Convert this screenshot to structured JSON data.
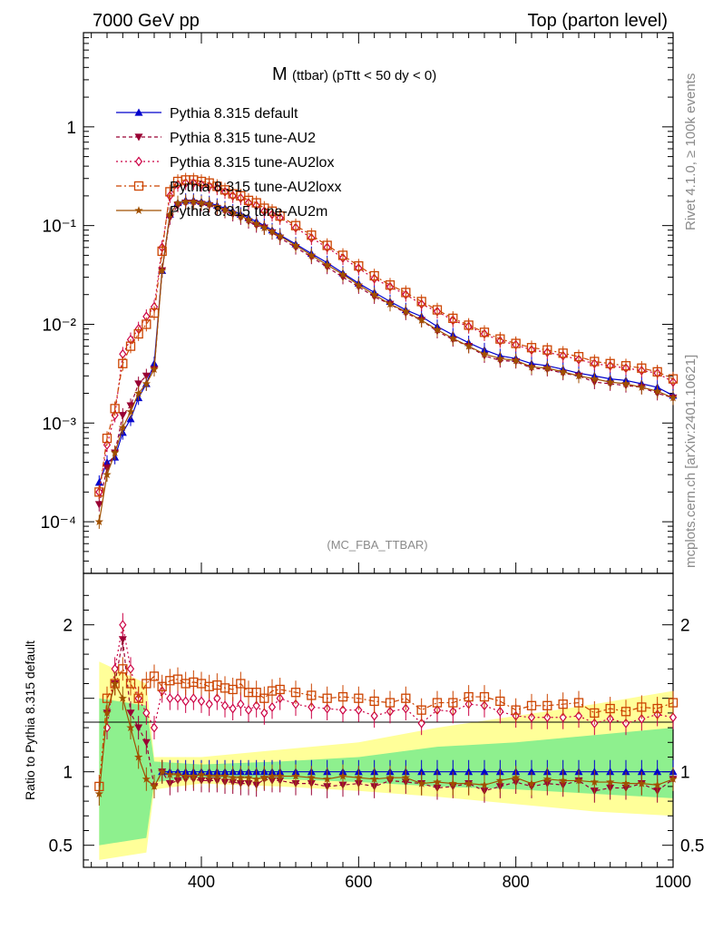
{
  "header": {
    "left": "7000 GeV pp",
    "right": "Top (parton level)"
  },
  "plot_title": {
    "main": "M",
    "sub": "(ttbar) (pTtt < 50 dy < 0)"
  },
  "side_labels": {
    "rivet": "Rivet 4.1.0, ≥ 100k events",
    "mcplots": "mcplots.cern.ch [arXiv:2401.10621]"
  },
  "analysis_tag": "(MC_FBA_TTBAR)",
  "ratio_ylabel": "Ratio to Pythia 8.315 default",
  "colors": {
    "default": "#0000cc",
    "AU2": "#990033",
    "AU2lox": "#cc0044",
    "AU2loxx": "#cc4400",
    "AU2m": "#a05000",
    "band_green": "#8ef08e",
    "band_yellow": "#ffff99"
  },
  "chart_data": {
    "type": "line",
    "title": "M (ttbar) (pTtt < 50 dy < 0)",
    "xlabel": "",
    "ylabel_ratio": "Ratio to Pythia 8.315 default",
    "xlim": [
      250,
      1000
    ],
    "ylim_main": [
      3e-05,
      9
    ],
    "yscale_main": "log",
    "ylim_ratio": [
      0.35,
      2.35
    ],
    "x_ticks": [
      "400",
      "600",
      "800",
      "1000"
    ],
    "y_ticks_main": [
      "10⁻⁴",
      "10⁻³",
      "10⁻²",
      "10⁻¹",
      "1"
    ],
    "y_ticks_ratio": [
      "0.5",
      "1",
      "2"
    ],
    "legend_position": "top-left",
    "x": [
      270,
      280,
      290,
      300,
      310,
      320,
      330,
      340,
      350,
      360,
      370,
      380,
      390,
      400,
      410,
      420,
      430,
      440,
      450,
      460,
      470,
      480,
      490,
      500,
      520,
      540,
      560,
      580,
      600,
      620,
      640,
      660,
      680,
      700,
      720,
      740,
      760,
      780,
      800,
      820,
      840,
      860,
      880,
      900,
      920,
      940,
      960,
      980,
      1000
    ],
    "series": [
      {
        "name": "Pythia 8.315 default",
        "key": "default",
        "marker": "triangle-up",
        "dash": "",
        "values": [
          0.00025,
          0.0004,
          0.00045,
          0.0008,
          0.0011,
          0.0018,
          0.0025,
          0.004,
          0.035,
          0.13,
          0.17,
          0.18,
          0.18,
          0.175,
          0.17,
          0.16,
          0.15,
          0.14,
          0.13,
          0.12,
          0.11,
          0.1,
          0.09,
          0.08,
          0.065,
          0.052,
          0.042,
          0.033,
          0.026,
          0.021,
          0.017,
          0.014,
          0.012,
          0.0095,
          0.0078,
          0.0065,
          0.0055,
          0.0048,
          0.0045,
          0.004,
          0.0038,
          0.0035,
          0.0032,
          0.003,
          0.0028,
          0.0027,
          0.0025,
          0.0023,
          0.0019
        ],
        "ratio": [
          null,
          null,
          null,
          null,
          null,
          null,
          null,
          null,
          1,
          1,
          1,
          1,
          1,
          1,
          1,
          1,
          1,
          1,
          1,
          1,
          1,
          1,
          1,
          1,
          1,
          1,
          1,
          1,
          1,
          1,
          1,
          1,
          1,
          1,
          1,
          1,
          1,
          1,
          1,
          1,
          1,
          1,
          1,
          1,
          1,
          1,
          1,
          1,
          1
        ]
      },
      {
        "name": "Pythia 8.315 tune-AU2",
        "key": "AU2",
        "marker": "triangle-down",
        "dash": "4,3",
        "values": [
          0.00015,
          0.00035,
          0.0005,
          0.0012,
          0.0015,
          0.0025,
          0.003,
          0.0035,
          0.035,
          0.12,
          0.16,
          0.17,
          0.17,
          0.165,
          0.16,
          0.15,
          0.14,
          0.13,
          0.12,
          0.11,
          0.1,
          0.095,
          0.085,
          0.075,
          0.06,
          0.048,
          0.038,
          0.03,
          0.024,
          0.019,
          0.016,
          0.013,
          0.011,
          0.0085,
          0.007,
          0.006,
          0.0048,
          0.0043,
          0.0042,
          0.0036,
          0.0035,
          0.0032,
          0.003,
          0.0026,
          0.0025,
          0.0024,
          0.0023,
          0.002,
          0.0018
        ],
        "ratio": [
          null,
          1.4,
          1.6,
          1.9,
          1.4,
          1.3,
          1.2,
          0.9,
          1.0,
          0.92,
          0.94,
          0.95,
          0.95,
          0.94,
          0.94,
          0.94,
          0.93,
          0.93,
          0.92,
          0.92,
          0.91,
          0.95,
          0.94,
          0.94,
          0.92,
          0.92,
          0.9,
          0.91,
          0.92,
          0.9,
          0.94,
          0.93,
          0.92,
          0.89,
          0.9,
          0.92,
          0.87,
          0.9,
          0.93,
          0.9,
          0.92,
          0.91,
          0.94,
          0.87,
          0.89,
          0.89,
          0.92,
          0.87,
          0.95
        ]
      },
      {
        "name": "Pythia 8.315 tune-AU2lox",
        "key": "AU2lox",
        "marker": "diamond",
        "dash": "2,3",
        "values": [
          0.0002,
          0.0006,
          0.0012,
          0.005,
          0.007,
          0.009,
          0.012,
          0.015,
          0.06,
          0.2,
          0.26,
          0.27,
          0.27,
          0.26,
          0.25,
          0.24,
          0.22,
          0.2,
          0.19,
          0.17,
          0.16,
          0.14,
          0.13,
          0.12,
          0.095,
          0.075,
          0.06,
          0.047,
          0.037,
          0.029,
          0.024,
          0.02,
          0.016,
          0.0135,
          0.011,
          0.0095,
          0.008,
          0.0068,
          0.0062,
          0.0055,
          0.0052,
          0.0048,
          0.0044,
          0.004,
          0.0038,
          0.0036,
          0.0034,
          0.0032,
          0.0026
        ],
        "ratio": [
          null,
          1.3,
          1.7,
          2.0,
          1.7,
          1.5,
          1.4,
          1.3,
          1.55,
          1.5,
          1.5,
          1.48,
          1.5,
          1.48,
          1.46,
          1.5,
          1.45,
          1.43,
          1.46,
          1.42,
          1.45,
          1.4,
          1.44,
          1.5,
          1.46,
          1.44,
          1.43,
          1.42,
          1.42,
          1.38,
          1.41,
          1.43,
          1.33,
          1.42,
          1.41,
          1.46,
          1.45,
          1.41,
          1.38,
          1.37,
          1.37,
          1.37,
          1.38,
          1.33,
          1.36,
          1.33,
          1.36,
          1.39,
          1.37
        ]
      },
      {
        "name": "Pythia 8.315 tune-AU2loxx",
        "key": "AU2loxx",
        "marker": "square-open",
        "dash": "6,3,2,3",
        "values": [
          0.0002,
          0.0007,
          0.0014,
          0.004,
          0.006,
          0.008,
          0.01,
          0.013,
          0.055,
          0.22,
          0.28,
          0.29,
          0.29,
          0.28,
          0.27,
          0.25,
          0.23,
          0.21,
          0.2,
          0.18,
          0.17,
          0.15,
          0.14,
          0.125,
          0.1,
          0.08,
          0.063,
          0.05,
          0.039,
          0.031,
          0.025,
          0.021,
          0.017,
          0.014,
          0.0115,
          0.0098,
          0.0083,
          0.0071,
          0.0064,
          0.0058,
          0.0055,
          0.0051,
          0.0047,
          0.0042,
          0.004,
          0.0038,
          0.0036,
          0.0033,
          0.0028
        ],
        "ratio": [
          0.9,
          1.5,
          1.6,
          1.7,
          1.6,
          1.5,
          1.6,
          1.65,
          1.58,
          1.62,
          1.63,
          1.6,
          1.61,
          1.6,
          1.58,
          1.59,
          1.57,
          1.56,
          1.6,
          1.54,
          1.54,
          1.5,
          1.55,
          1.56,
          1.54,
          1.52,
          1.5,
          1.51,
          1.5,
          1.48,
          1.47,
          1.5,
          1.42,
          1.47,
          1.47,
          1.51,
          1.51,
          1.48,
          1.42,
          1.45,
          1.45,
          1.46,
          1.47,
          1.4,
          1.43,
          1.41,
          1.44,
          1.43,
          1.47
        ]
      },
      {
        "name": "Pythia 8.315 tune-AU2m",
        "key": "AU2m",
        "marker": "star",
        "dash": "",
        "values": [
          0.0001,
          0.0003,
          0.0005,
          0.0009,
          0.0013,
          0.002,
          0.0025,
          0.0035,
          0.035,
          0.13,
          0.17,
          0.175,
          0.175,
          0.17,
          0.165,
          0.155,
          0.145,
          0.135,
          0.125,
          0.115,
          0.105,
          0.095,
          0.087,
          0.078,
          0.063,
          0.05,
          0.04,
          0.032,
          0.025,
          0.02,
          0.016,
          0.0135,
          0.011,
          0.0088,
          0.0072,
          0.006,
          0.005,
          0.0045,
          0.0043,
          0.0037,
          0.0036,
          0.0033,
          0.003,
          0.0028,
          0.0026,
          0.0025,
          0.0023,
          0.0021,
          0.0018
        ],
        "ratio": [
          0.85,
          1.4,
          1.6,
          1.5,
          1.3,
          1.1,
          0.95,
          0.9,
          1.0,
          0.98,
          0.98,
          0.97,
          0.97,
          0.98,
          0.97,
          0.97,
          0.97,
          0.96,
          0.96,
          0.96,
          0.95,
          0.96,
          0.97,
          0.97,
          0.97,
          0.96,
          0.95,
          0.97,
          0.96,
          0.95,
          0.96,
          0.96,
          0.92,
          0.93,
          0.92,
          0.92,
          0.91,
          0.94,
          0.96,
          0.92,
          0.95,
          0.94,
          0.94,
          0.93,
          0.93,
          0.92,
          0.92,
          0.91,
          0.95
        ]
      }
    ],
    "band_green": [
      [
        270,
        0.5,
        1.5
      ],
      [
        330,
        0.55,
        1.45
      ],
      [
        340,
        0.93,
        1.07
      ],
      [
        400,
        0.96,
        1.05
      ],
      [
        500,
        0.95,
        1.07
      ],
      [
        600,
        0.93,
        1.1
      ],
      [
        700,
        0.9,
        1.17
      ],
      [
        800,
        0.88,
        1.2
      ],
      [
        900,
        0.85,
        1.25
      ],
      [
        1000,
        0.82,
        1.3
      ]
    ],
    "band_yellow": [
      [
        270,
        0.4,
        1.75
      ],
      [
        330,
        0.45,
        1.6
      ],
      [
        340,
        0.88,
        1.1
      ],
      [
        400,
        0.92,
        1.1
      ],
      [
        500,
        0.9,
        1.15
      ],
      [
        600,
        0.87,
        1.2
      ],
      [
        700,
        0.83,
        1.3
      ],
      [
        800,
        0.78,
        1.38
      ],
      [
        900,
        0.73,
        1.46
      ],
      [
        1000,
        0.7,
        1.55
      ]
    ]
  }
}
